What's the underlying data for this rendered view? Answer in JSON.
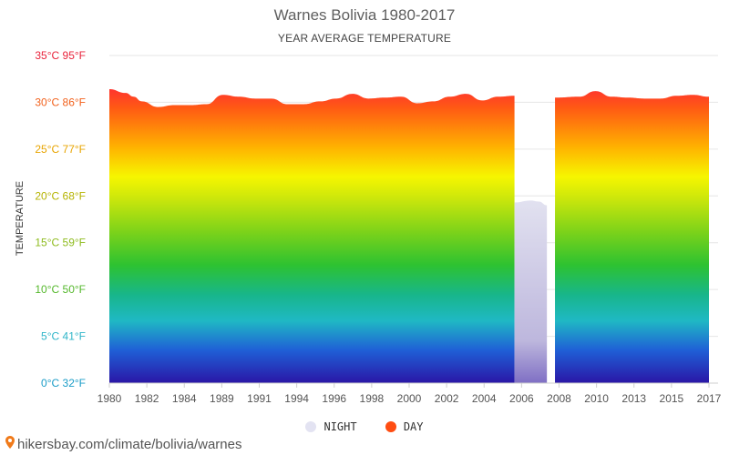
{
  "title": "Warnes Bolivia 1980-2017",
  "subtitle": "YEAR AVERAGE TEMPERATURE",
  "footer": {
    "text": "hikersbay.com/climate/bolivia/warnes",
    "icon": "location-pin-icon"
  },
  "legend": [
    {
      "label": "NIGHT",
      "color": "#e3e3f2"
    },
    {
      "label": "DAY",
      "color": "#ff4d12"
    }
  ],
  "chart_data": {
    "type": "area",
    "title": "Warnes Bolivia 1980-2017",
    "subtitle": "YEAR AVERAGE TEMPERATURE",
    "ylabel": "TEMPERATURE",
    "ylim": [
      0,
      35
    ],
    "xlim": [
      1980,
      2017
    ],
    "grid": true,
    "legend_position": "bottom",
    "y_ticks": [
      {
        "value": 0,
        "label": "0°C 32°F",
        "color": "#1a9cc7"
      },
      {
        "value": 5,
        "label": "5°C 41°F",
        "color": "#2fb5c9"
      },
      {
        "value": 10,
        "label": "10°C 50°F",
        "color": "#55b82c"
      },
      {
        "value": 15,
        "label": "15°C 59°F",
        "color": "#8ebb1d"
      },
      {
        "value": 20,
        "label": "20°C 68°F",
        "color": "#b5b300"
      },
      {
        "value": 25,
        "label": "25°C 77°F",
        "color": "#e8a400"
      },
      {
        "value": 30,
        "label": "30°C 86°F",
        "color": "#f2611c"
      },
      {
        "value": 35,
        "label": "35°C 95°F",
        "color": "#e8233b"
      }
    ],
    "x_ticks": [
      1980,
      1982,
      1984,
      1989,
      1991,
      1994,
      1996,
      1998,
      2000,
      2002,
      2004,
      2006,
      2008,
      2010,
      2013,
      2015,
      2017
    ],
    "series": [
      {
        "name": "NIGHT",
        "color": "#e3e3f2",
        "x": [
          1980,
          1981,
          1981.5,
          1983.5,
          1985,
          1985.5,
          1986,
          1986.5,
          1989.5,
          1991,
          1992,
          1993,
          1993.5,
          1994,
          1995,
          1996,
          1997,
          1998,
          1999,
          2000,
          2001,
          2002,
          2003,
          2004,
          2005,
          2006,
          2006.5,
          2007,
          2008,
          2009,
          2010,
          2011,
          2012,
          2012.5,
          2015,
          2016,
          2017
        ],
        "values": [
          20,
          19.9,
          19.8,
          19.4,
          19.6,
          20.1,
          20.9,
          21.6,
          19.2,
          19.2,
          18.9,
          18.1,
          18.2,
          19.4,
          19.4,
          19.3,
          18.8,
          18.7,
          18.8,
          19.3,
          19.6,
          20.2,
          19.6,
          19.3,
          19.3,
          19.5,
          19.4,
          19.0,
          18.6,
          18.6,
          18.7,
          18.9,
          19.5,
          19.7,
          19.3,
          19.3,
          19.0
        ]
      },
      {
        "name": "DAY",
        "color": "#ff4d12",
        "x": [
          1980,
          1981,
          1981.5,
          1982,
          1983,
          1984,
          1985,
          1986,
          1987,
          1988,
          1989,
          1990,
          1991,
          1992,
          1993,
          1994,
          1995,
          1996,
          1997,
          1998,
          1999,
          2000,
          2001,
          2002,
          2003,
          2004,
          2005,
          2007.5,
          2009,
          2010,
          2011,
          2012,
          2013,
          2014,
          2015,
          2016,
          2017
        ],
        "values": [
          31.4,
          31.0,
          30.6,
          30.1,
          29.5,
          29.7,
          29.7,
          29.8,
          30.8,
          30.6,
          30.4,
          30.4,
          29.8,
          29.8,
          30.1,
          30.4,
          30.9,
          30.4,
          30.5,
          30.6,
          29.9,
          30.1,
          30.6,
          30.9,
          30.2,
          30.6,
          30.7,
          30.5,
          30.6,
          31.2,
          30.6,
          30.5,
          30.4,
          30.4,
          30.7,
          30.8,
          30.6
        ]
      }
    ],
    "missing_years": [
      2005,
      2006
    ],
    "bar_bands": [
      [
        1980,
        1981
      ],
      [
        1983,
        1985
      ],
      [
        1987,
        1989
      ],
      [
        2005,
        2007
      ],
      [
        2012,
        2014
      ]
    ]
  }
}
